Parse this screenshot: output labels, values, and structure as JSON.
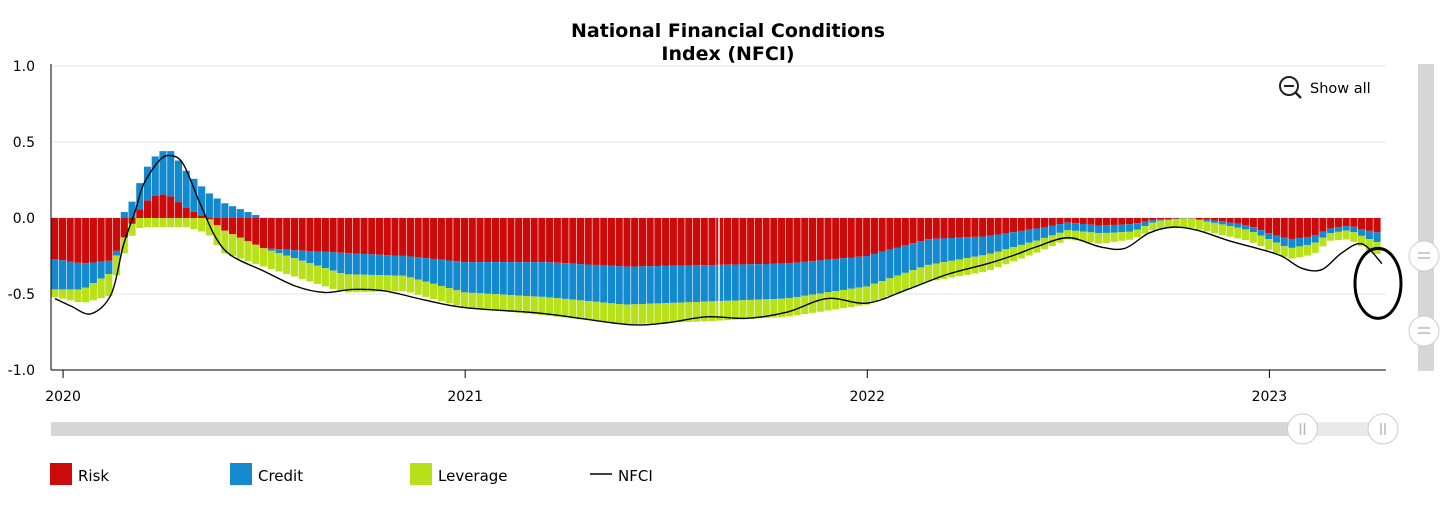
{
  "chart_data": {
    "type": "bar",
    "title_lines": [
      "National Financial Conditions",
      "Index (NFCI)"
    ],
    "xlabel": "",
    "ylabel": "",
    "ylim": [
      -1.0,
      1.0
    ],
    "y_ticks": [
      {
        "value": 1.0,
        "label": "1.0"
      },
      {
        "value": 0.5,
        "label": "0.5"
      },
      {
        "value": 0.0,
        "label": "0.0"
      },
      {
        "value": -0.5,
        "label": "-0.5"
      },
      {
        "value": -1.0,
        "label": "-1.0"
      }
    ],
    "x_range": [
      2019.97,
      2023.29
    ],
    "x_ticks": [
      {
        "value": 2020.0,
        "label": "2020"
      },
      {
        "value": 2021.0,
        "label": "2021"
      },
      {
        "value": 2022.0,
        "label": "2022"
      },
      {
        "value": 2023.0,
        "label": "2023"
      }
    ],
    "grid": true,
    "legend_position": "bottom",
    "series": [
      {
        "name": "Risk",
        "color": "#cc0a0a",
        "points": [
          [
            2019.98,
            -0.27
          ],
          [
            2020.05,
            -0.3
          ],
          [
            2020.12,
            -0.28
          ],
          [
            2020.17,
            -0.05
          ],
          [
            2020.2,
            0.1
          ],
          [
            2020.24,
            0.16
          ],
          [
            2020.27,
            0.14
          ],
          [
            2020.31,
            0.06
          ],
          [
            2020.36,
            0.0
          ],
          [
            2020.4,
            -0.08
          ],
          [
            2020.5,
            -0.2
          ],
          [
            2020.7,
            -0.23
          ],
          [
            2020.85,
            -0.25
          ],
          [
            2021.0,
            -0.29
          ],
          [
            2021.2,
            -0.29
          ],
          [
            2021.4,
            -0.32
          ],
          [
            2021.6,
            -0.31
          ],
          [
            2021.8,
            -0.3
          ],
          [
            2022.0,
            -0.25
          ],
          [
            2022.15,
            -0.14
          ],
          [
            2022.3,
            -0.12
          ],
          [
            2022.42,
            -0.07
          ],
          [
            2022.5,
            -0.03
          ],
          [
            2022.58,
            -0.05
          ],
          [
            2022.66,
            -0.04
          ],
          [
            2022.72,
            -0.01
          ],
          [
            2022.8,
            0.0
          ],
          [
            2022.88,
            -0.02
          ],
          [
            2022.95,
            -0.05
          ],
          [
            2023.0,
            -0.1
          ],
          [
            2023.05,
            -0.14
          ],
          [
            2023.11,
            -0.12
          ],
          [
            2023.15,
            -0.07
          ],
          [
            2023.2,
            -0.05
          ],
          [
            2023.24,
            -0.08
          ],
          [
            2023.28,
            -0.1
          ]
        ]
      },
      {
        "name": "Credit",
        "color": "#138ad0",
        "points": [
          [
            2019.98,
            -0.2
          ],
          [
            2020.05,
            -0.17
          ],
          [
            2020.12,
            -0.08
          ],
          [
            2020.17,
            0.1
          ],
          [
            2020.2,
            0.2
          ],
          [
            2020.24,
            0.28
          ],
          [
            2020.27,
            0.3
          ],
          [
            2020.31,
            0.24
          ],
          [
            2020.36,
            0.17
          ],
          [
            2020.4,
            0.1
          ],
          [
            2020.5,
            0.0
          ],
          [
            2020.7,
            -0.14
          ],
          [
            2020.85,
            -0.13
          ],
          [
            2021.0,
            -0.2
          ],
          [
            2021.2,
            -0.23
          ],
          [
            2021.4,
            -0.25
          ],
          [
            2021.6,
            -0.24
          ],
          [
            2021.8,
            -0.23
          ],
          [
            2022.0,
            -0.2
          ],
          [
            2022.15,
            -0.17
          ],
          [
            2022.3,
            -0.12
          ],
          [
            2022.42,
            -0.08
          ],
          [
            2022.5,
            -0.05
          ],
          [
            2022.58,
            -0.05
          ],
          [
            2022.66,
            -0.05
          ],
          [
            2022.72,
            -0.01
          ],
          [
            2022.8,
            0.0
          ],
          [
            2022.88,
            -0.02
          ],
          [
            2022.95,
            -0.03
          ],
          [
            2023.0,
            -0.04
          ],
          [
            2023.05,
            -0.06
          ],
          [
            2023.11,
            -0.05
          ],
          [
            2023.15,
            -0.03
          ],
          [
            2023.2,
            -0.03
          ],
          [
            2023.24,
            -0.05
          ],
          [
            2023.28,
            -0.07
          ]
        ]
      },
      {
        "name": "Leverage",
        "color": "#b8e11c",
        "points": [
          [
            2019.98,
            -0.05
          ],
          [
            2020.05,
            -0.09
          ],
          [
            2020.12,
            -0.15
          ],
          [
            2020.17,
            -0.08
          ],
          [
            2020.2,
            -0.06
          ],
          [
            2020.24,
            -0.06
          ],
          [
            2020.27,
            -0.06
          ],
          [
            2020.31,
            -0.06
          ],
          [
            2020.36,
            -0.1
          ],
          [
            2020.4,
            -0.15
          ],
          [
            2020.5,
            -0.12
          ],
          [
            2020.7,
            -0.12
          ],
          [
            2020.85,
            -0.1
          ],
          [
            2021.0,
            -0.1
          ],
          [
            2021.2,
            -0.12
          ],
          [
            2021.4,
            -0.13
          ],
          [
            2021.6,
            -0.13
          ],
          [
            2021.8,
            -0.12
          ],
          [
            2022.0,
            -0.12
          ],
          [
            2022.15,
            -0.11
          ],
          [
            2022.3,
            -0.11
          ],
          [
            2022.42,
            -0.08
          ],
          [
            2022.5,
            -0.06
          ],
          [
            2022.58,
            -0.07
          ],
          [
            2022.66,
            -0.05
          ],
          [
            2022.72,
            -0.05
          ],
          [
            2022.8,
            -0.06
          ],
          [
            2022.88,
            -0.07
          ],
          [
            2022.95,
            -0.07
          ],
          [
            2023.0,
            -0.07
          ],
          [
            2023.05,
            -0.07
          ],
          [
            2023.11,
            -0.07
          ],
          [
            2023.15,
            -0.05
          ],
          [
            2023.2,
            -0.06
          ],
          [
            2023.24,
            -0.07
          ],
          [
            2023.28,
            -0.08
          ]
        ]
      },
      {
        "name": "NFCI",
        "color": "#000000",
        "type": "line",
        "points": [
          [
            2019.98,
            -0.53
          ],
          [
            2020.02,
            -0.58
          ],
          [
            2020.07,
            -0.63
          ],
          [
            2020.12,
            -0.5
          ],
          [
            2020.15,
            -0.18
          ],
          [
            2020.18,
            0.05
          ],
          [
            2020.2,
            0.22
          ],
          [
            2020.24,
            0.38
          ],
          [
            2020.27,
            0.41
          ],
          [
            2020.3,
            0.35
          ],
          [
            2020.34,
            0.1
          ],
          [
            2020.38,
            -0.13
          ],
          [
            2020.42,
            -0.25
          ],
          [
            2020.5,
            -0.35
          ],
          [
            2020.58,
            -0.45
          ],
          [
            2020.65,
            -0.49
          ],
          [
            2020.72,
            -0.47
          ],
          [
            2020.8,
            -0.48
          ],
          [
            2020.9,
            -0.54
          ],
          [
            2021.0,
            -0.59
          ],
          [
            2021.2,
            -0.63
          ],
          [
            2021.4,
            -0.7
          ],
          [
            2021.5,
            -0.69
          ],
          [
            2021.6,
            -0.65
          ],
          [
            2021.7,
            -0.66
          ],
          [
            2021.8,
            -0.62
          ],
          [
            2021.9,
            -0.53
          ],
          [
            2022.0,
            -0.56
          ],
          [
            2022.1,
            -0.47
          ],
          [
            2022.2,
            -0.37
          ],
          [
            2022.3,
            -0.3
          ],
          [
            2022.37,
            -0.24
          ],
          [
            2022.42,
            -0.19
          ],
          [
            2022.5,
            -0.13
          ],
          [
            2022.58,
            -0.19
          ],
          [
            2022.64,
            -0.2
          ],
          [
            2022.7,
            -0.1
          ],
          [
            2022.76,
            -0.06
          ],
          [
            2022.82,
            -0.08
          ],
          [
            2022.9,
            -0.15
          ],
          [
            2022.97,
            -0.2
          ],
          [
            2023.03,
            -0.25
          ],
          [
            2023.08,
            -0.33
          ],
          [
            2023.13,
            -0.34
          ],
          [
            2023.18,
            -0.23
          ],
          [
            2023.23,
            -0.17
          ],
          [
            2023.28,
            -0.3
          ]
        ]
      }
    ]
  },
  "controls": {
    "show_all_label": "Show all",
    "zoom_icon": "zoom-out-icon",
    "navigator_range": [
      2023.08,
      2023.29
    ]
  },
  "annotations": {
    "circle": {
      "x": 2023.29,
      "y_center": -0.43,
      "y_half_span": 0.23
    }
  }
}
